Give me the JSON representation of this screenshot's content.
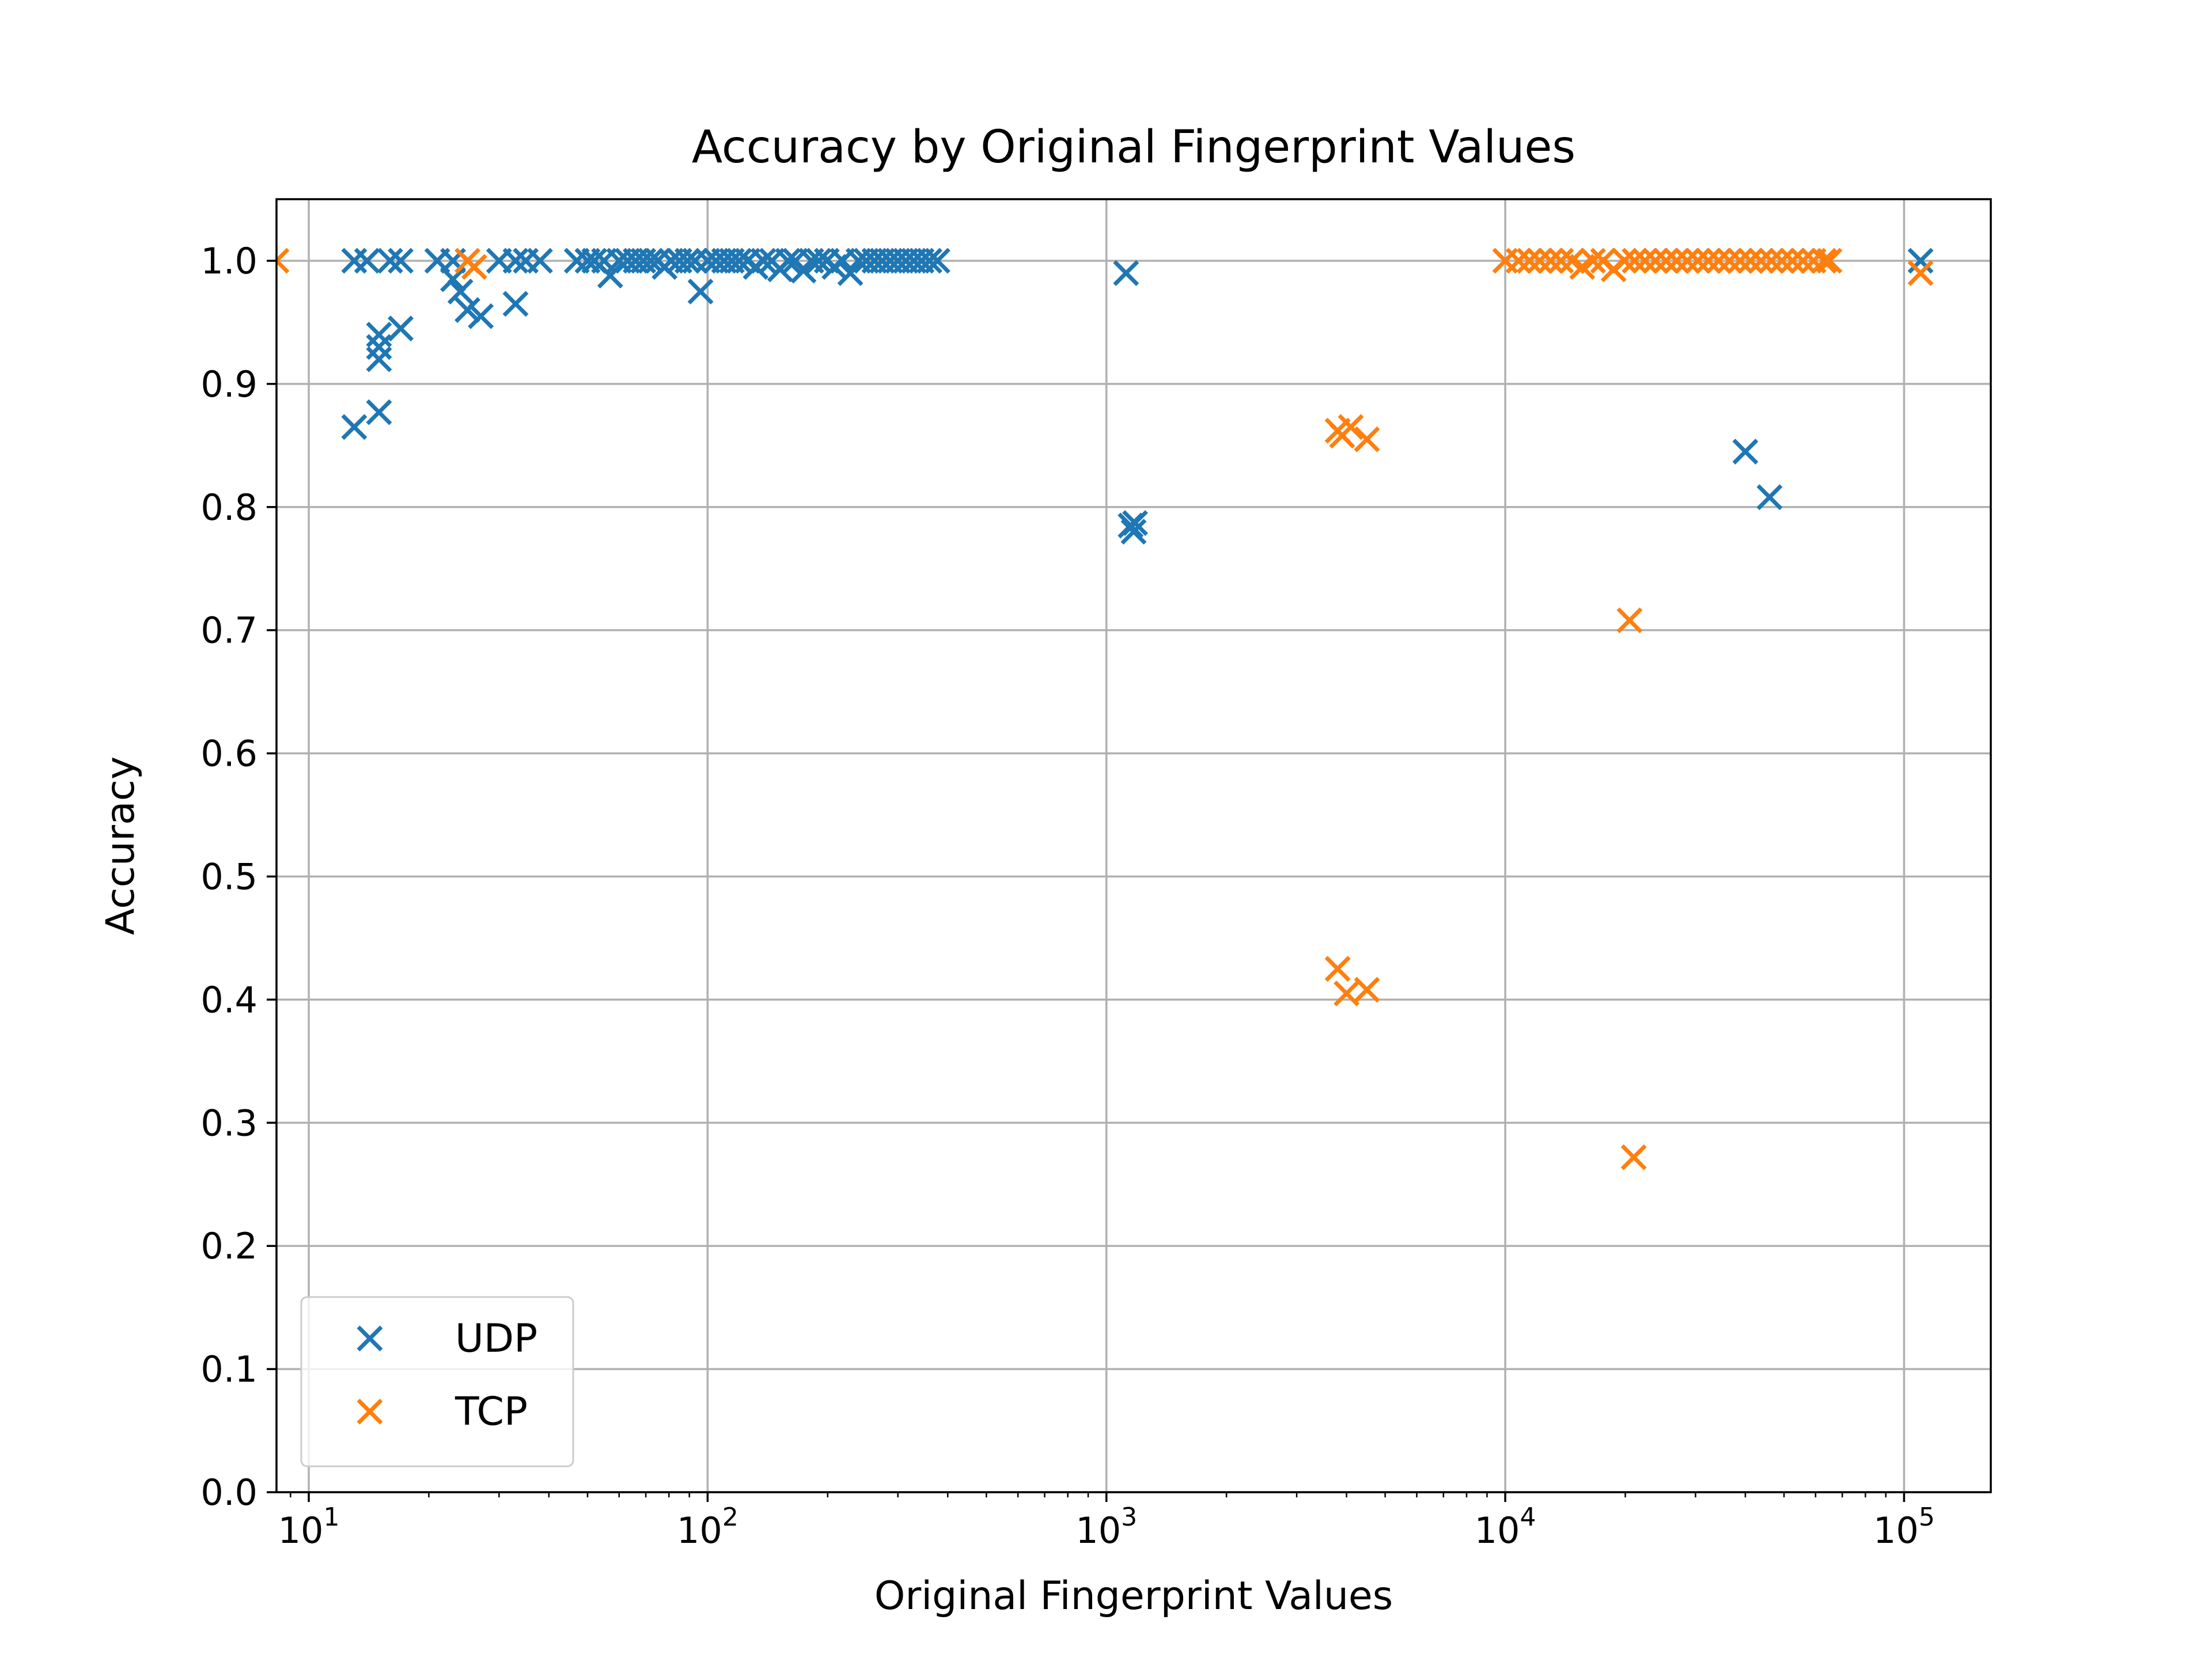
{
  "chart_data": {
    "type": "scatter",
    "title": "Accuracy by Original Fingerprint Values",
    "xlabel": "Original Fingerprint Values",
    "ylabel": "Accuracy",
    "xscale": "log",
    "xlim": [
      8.3,
      165000
    ],
    "ylim": [
      0.0,
      1.05
    ],
    "grid": true,
    "legend_position": "lower-left",
    "marker": "x",
    "x_ticks": [
      {
        "value": 10,
        "base": "10",
        "exp": "1"
      },
      {
        "value": 100,
        "base": "10",
        "exp": "2"
      },
      {
        "value": 1000,
        "base": "10",
        "exp": "3"
      },
      {
        "value": 10000,
        "base": "10",
        "exp": "4"
      },
      {
        "value": 100000,
        "base": "10",
        "exp": "5"
      }
    ],
    "y_ticks": [
      {
        "value": 0.0,
        "label": "0.0"
      },
      {
        "value": 0.1,
        "label": "0.1"
      },
      {
        "value": 0.2,
        "label": "0.2"
      },
      {
        "value": 0.3,
        "label": "0.3"
      },
      {
        "value": 0.4,
        "label": "0.4"
      },
      {
        "value": 0.5,
        "label": "0.5"
      },
      {
        "value": 0.6,
        "label": "0.6"
      },
      {
        "value": 0.7,
        "label": "0.7"
      },
      {
        "value": 0.8,
        "label": "0.8"
      },
      {
        "value": 0.9,
        "label": "0.9"
      },
      {
        "value": 1.0,
        "label": "1.0"
      }
    ],
    "series": [
      {
        "name": "UDP",
        "color": "#1f77b4",
        "points": [
          [
            13,
            1.0
          ],
          [
            14,
            1.0
          ],
          [
            16,
            1.0
          ],
          [
            17,
            1.0
          ],
          [
            21,
            1.0
          ],
          [
            23,
            1.0
          ],
          [
            13,
            0.865
          ],
          [
            15,
            0.877
          ],
          [
            15,
            0.92
          ],
          [
            15,
            0.93
          ],
          [
            15,
            0.94
          ],
          [
            17,
            0.945
          ],
          [
            23,
            0.985
          ],
          [
            24,
            0.975
          ],
          [
            25,
            0.96
          ],
          [
            27,
            0.955
          ],
          [
            33,
            0.965
          ],
          [
            30,
            1.0
          ],
          [
            33,
            1.0
          ],
          [
            35,
            1.0
          ],
          [
            38,
            1.0
          ],
          [
            47,
            1.0
          ],
          [
            50,
            1.0
          ],
          [
            52,
            1.0
          ],
          [
            55,
            1.0
          ],
          [
            57,
            0.988
          ],
          [
            60,
            1.0
          ],
          [
            63,
            1.0
          ],
          [
            66,
            1.0
          ],
          [
            69,
            1.0
          ],
          [
            72,
            1.0
          ],
          [
            75,
            1.0
          ],
          [
            78,
            0.995
          ],
          [
            81,
            1.0
          ],
          [
            85,
            1.0
          ],
          [
            89,
            1.0
          ],
          [
            93,
            1.0
          ],
          [
            96,
            0.975
          ],
          [
            100,
            1.0
          ],
          [
            105,
            1.0
          ],
          [
            110,
            1.0
          ],
          [
            115,
            1.0
          ],
          [
            120,
            1.0
          ],
          [
            126,
            1.0
          ],
          [
            132,
            0.995
          ],
          [
            138,
            1.0
          ],
          [
            145,
            1.0
          ],
          [
            152,
            0.993
          ],
          [
            159,
            1.0
          ],
          [
            166,
            1.0
          ],
          [
            174,
            0.992
          ],
          [
            182,
            1.0
          ],
          [
            190,
            1.0
          ],
          [
            199,
            1.0
          ],
          [
            208,
            0.995
          ],
          [
            218,
            1.0
          ],
          [
            228,
            0.99
          ],
          [
            239,
            1.0
          ],
          [
            250,
            1.0
          ],
          [
            262,
            1.0
          ],
          [
            274,
            1.0
          ],
          [
            287,
            1.0
          ],
          [
            300,
            1.0
          ],
          [
            314,
            1.0
          ],
          [
            329,
            1.0
          ],
          [
            344,
            1.0
          ],
          [
            360,
            1.0
          ],
          [
            377,
            1.0
          ],
          [
            1120,
            0.99
          ],
          [
            1150,
            0.785
          ],
          [
            1170,
            0.78
          ],
          [
            1180,
            0.787
          ],
          [
            40000,
            0.845
          ],
          [
            46000,
            0.808
          ],
          [
            110000,
            1.0
          ]
        ]
      },
      {
        "name": "TCP",
        "color": "#ff7f0e",
        "points": [
          [
            8.3,
            1.0
          ],
          [
            25,
            1.0
          ],
          [
            26,
            0.995
          ],
          [
            3800,
            0.862
          ],
          [
            3900,
            0.858
          ],
          [
            4100,
            0.865
          ],
          [
            4500,
            0.855
          ],
          [
            3800,
            0.425
          ],
          [
            4000,
            0.405
          ],
          [
            4500,
            0.408
          ],
          [
            20500,
            0.708
          ],
          [
            21000,
            0.272
          ],
          [
            10000,
            1.0
          ],
          [
            10800,
            1.0
          ],
          [
            11500,
            1.0
          ],
          [
            12200,
            1.0
          ],
          [
            13000,
            1.0
          ],
          [
            13800,
            1.0
          ],
          [
            14700,
            1.0
          ],
          [
            15600,
            0.995
          ],
          [
            16600,
            1.0
          ],
          [
            17600,
            1.0
          ],
          [
            18700,
            0.993
          ],
          [
            19900,
            1.0
          ],
          [
            21100,
            1.0
          ],
          [
            22400,
            1.0
          ],
          [
            23800,
            1.0
          ],
          [
            25300,
            1.0
          ],
          [
            26900,
            1.0
          ],
          [
            28600,
            1.0
          ],
          [
            30400,
            1.0
          ],
          [
            32300,
            1.0
          ],
          [
            34300,
            1.0
          ],
          [
            36500,
            1.0
          ],
          [
            38800,
            1.0
          ],
          [
            41200,
            1.0
          ],
          [
            43800,
            1.0
          ],
          [
            46500,
            1.0
          ],
          [
            49400,
            1.0
          ],
          [
            52500,
            1.0
          ],
          [
            55800,
            1.0
          ],
          [
            59300,
            1.0
          ],
          [
            63000,
            1.0
          ],
          [
            65000,
            1.0
          ],
          [
            110000,
            0.99
          ]
        ]
      }
    ]
  }
}
